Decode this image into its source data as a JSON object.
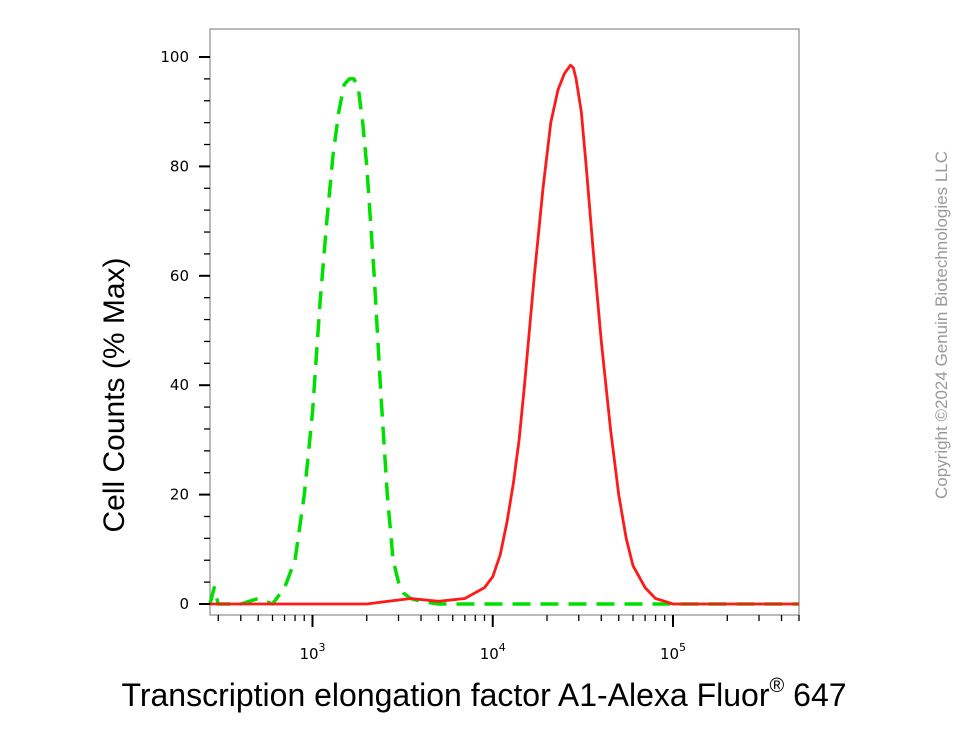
{
  "chart_data": {
    "type": "line",
    "xlabel": "Transcription elongation factor A1-Alexa Fluor",
    "xlabel_superscript": "®",
    "xlabel_suffix": " 647",
    "ylabel": "Cell Counts (% Max)",
    "x_scale": "log",
    "xlim": [
      270,
      500000
    ],
    "ylim": [
      0,
      100
    ],
    "y_ticks": [
      "0",
      "20",
      "40",
      "60",
      "80",
      "100"
    ],
    "x_ticks": [
      {
        "base": "10",
        "exp": "3",
        "value": 1000
      },
      {
        "base": "10",
        "exp": "4",
        "value": 10000
      },
      {
        "base": "10",
        "exp": "5",
        "value": 100000
      }
    ],
    "grid": false,
    "series": [
      {
        "color": "#00e000",
        "style": "dashed",
        "x": [
          270,
          285,
          300,
          330,
          400,
          500,
          600,
          700,
          800,
          900,
          1000,
          1100,
          1200,
          1300,
          1400,
          1500,
          1600,
          1700,
          1800,
          1900,
          2000,
          2200,
          2400,
          2600,
          2800,
          3000,
          3200,
          3500,
          4000,
          5000,
          10000,
          30000,
          100000,
          500000
        ],
        "y": [
          0,
          3,
          0,
          0,
          0,
          1,
          0,
          3,
          8,
          20,
          35,
          55,
          70,
          82,
          90,
          95,
          96,
          96,
          94,
          88,
          80,
          60,
          38,
          20,
          8,
          4,
          2,
          1,
          0.5,
          0,
          0,
          0,
          0,
          0
        ]
      },
      {
        "color": "#ff1a1a",
        "style": "solid",
        "x": [
          270,
          1000,
          2000,
          3500,
          5000,
          7000,
          9000,
          10000,
          11000,
          12000,
          13000,
          14000,
          15000,
          17000,
          19000,
          21000,
          23000,
          25000,
          27000,
          28000,
          29000,
          31000,
          33000,
          36000,
          40000,
          45000,
          50000,
          55000,
          60000,
          70000,
          80000,
          90000,
          100000,
          120000,
          150000,
          500000
        ],
        "y": [
          0,
          0,
          0,
          1,
          0.5,
          1,
          3,
          5,
          9,
          15,
          22,
          30,
          40,
          60,
          76,
          88,
          94,
          97,
          98.5,
          98,
          96,
          90,
          80,
          65,
          48,
          32,
          20,
          12,
          7,
          3,
          1,
          0.5,
          0,
          0,
          0,
          0
        ]
      }
    ]
  },
  "copyright": "Copyright ©2024 Genuin Biotechnologies LLC"
}
